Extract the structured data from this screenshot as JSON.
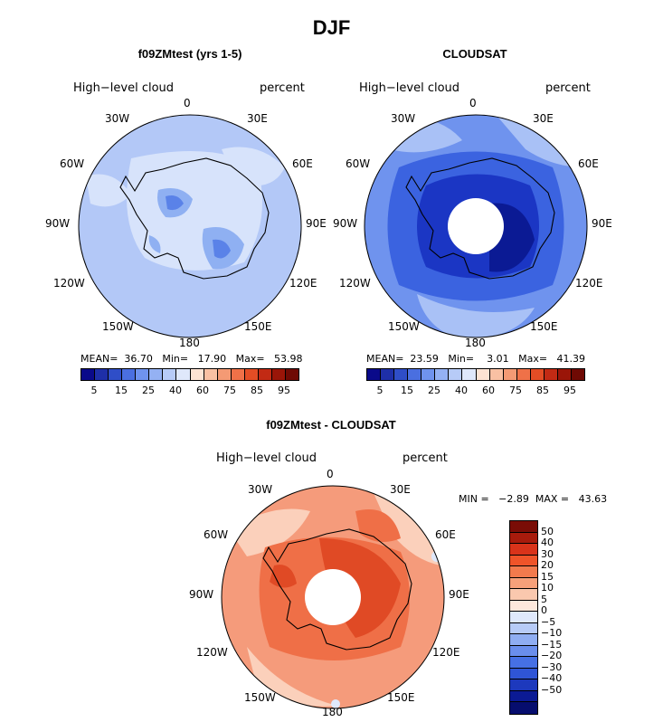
{
  "title": "DJF",
  "panels": [
    {
      "title": "f09ZMtest (yrs 1-5)",
      "left_label": "High−level cloud",
      "right_label": "percent",
      "stats": "MEAN=  36.70   Min=   17.90   Max=   53.98",
      "colors": {
        "ocean": "#b3c8f7",
        "patch_mid": "#8fb0f2",
        "patch_dark": "#5a82e8",
        "patch_light": "#d7e3fb"
      }
    },
    {
      "title": "CLOUDSAT",
      "left_label": "High−level cloud",
      "right_label": "percent",
      "stats": "MEAN=  23.59   Min=    3.01   Max=   41.39",
      "colors": {
        "ocean": "#6f93ee",
        "patch_mid": "#3b63e0",
        "patch_dark": "#1b36c4",
        "patch_light": "#a9c1f6"
      }
    },
    {
      "title": "f09ZMtest - CLOUDSAT",
      "left_label": "High−level cloud",
      "right_label": "percent",
      "stats": "MIN =   −2.89  MAX =   43.63",
      "colors": {
        "ocean": "#f59b7b",
        "patch_mid": "#ef6f47",
        "patch_dark": "#e04a25",
        "patch_light": "#fbd0bb"
      }
    }
  ],
  "longitudes": [
    "0",
    "30E",
    "60E",
    "90E",
    "120E",
    "150E",
    "180",
    "150W",
    "120W",
    "90W",
    "60W",
    "30W"
  ],
  "colorbar_abs": {
    "colors": [
      "#0a0a8a",
      "#1e2fa8",
      "#2f4ec8",
      "#4a6fe0",
      "#6f93ee",
      "#94b1f3",
      "#b7cbf7",
      "#dfe8fb",
      "#fde3d3",
      "#f9c0a3",
      "#f49a74",
      "#ef7148",
      "#e34d25",
      "#c22a14",
      "#9a1508",
      "#6f0a04"
    ],
    "ticks": [
      "5",
      "15",
      "25",
      "40",
      "60",
      "75",
      "85",
      "95"
    ]
  },
  "colorbar_diff": {
    "colors": [
      "#7a0d06",
      "#a81b0c",
      "#d9331a",
      "#ef5429",
      "#f27a4d",
      "#f6a07a",
      "#fac8ae",
      "#fde8dc",
      "#dfe8fb",
      "#b7cbf7",
      "#8fadf2",
      "#6a8eec",
      "#4670e4",
      "#2f55d6",
      "#1d39bd",
      "#0b1a94",
      "#060d6e"
    ],
    "ticks": [
      "50",
      "40",
      "30",
      "20",
      "15",
      "10",
      "5",
      "0",
      "−5",
      "−10",
      "−15",
      "−20",
      "−30",
      "−40",
      "−50"
    ]
  }
}
